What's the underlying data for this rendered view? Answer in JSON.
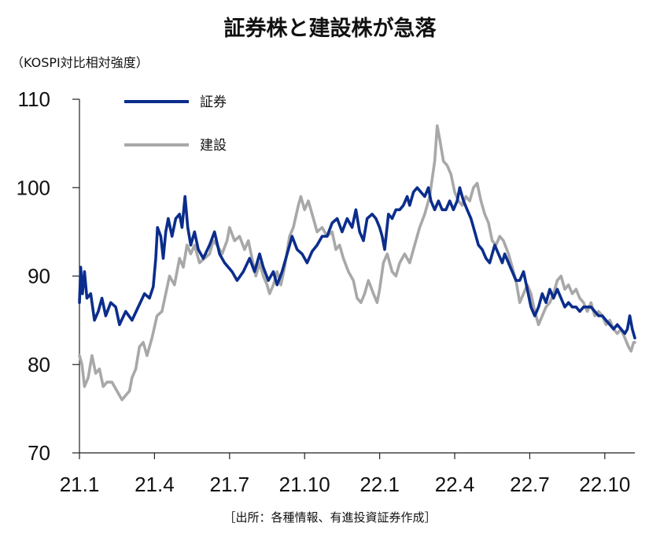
{
  "chart_data": {
    "type": "line",
    "title": "証券株と建設株が急落",
    "subtitle": "（KOSPI対比相対強度）",
    "source": "［出所：各種情報、有進投資証券作成］",
    "ylim": [
      70,
      110
    ],
    "yticks": [
      70,
      80,
      90,
      100,
      110
    ],
    "x_tick_labels": [
      "21.1",
      "21.4",
      "21.7",
      "21.10",
      "22.1",
      "22.4",
      "22.7",
      "22.10"
    ],
    "x_tick_index": [
      0,
      3,
      6,
      9,
      12,
      15,
      18,
      21
    ],
    "x_max_index": 22.2,
    "grid": false,
    "legend_position": "top-left",
    "series": [
      {
        "name": "証券",
        "color": "#0b2d8c",
        "points": [
          [
            0.0,
            87
          ],
          [
            0.05,
            91
          ],
          [
            0.12,
            88
          ],
          [
            0.2,
            90.5
          ],
          [
            0.3,
            87.5
          ],
          [
            0.45,
            88
          ],
          [
            0.6,
            85
          ],
          [
            0.75,
            86
          ],
          [
            0.9,
            87.5
          ],
          [
            1.05,
            85.5
          ],
          [
            1.25,
            87
          ],
          [
            1.45,
            86.5
          ],
          [
            1.6,
            84.5
          ],
          [
            1.85,
            86
          ],
          [
            2.1,
            85
          ],
          [
            2.35,
            86.5
          ],
          [
            2.6,
            88
          ],
          [
            2.8,
            87.5
          ],
          [
            2.95,
            88.8
          ],
          [
            3.05,
            92
          ],
          [
            3.12,
            95.5
          ],
          [
            3.25,
            94.5
          ],
          [
            3.35,
            92
          ],
          [
            3.45,
            95
          ],
          [
            3.55,
            96.5
          ],
          [
            3.7,
            94.5
          ],
          [
            3.85,
            96.5
          ],
          [
            4.0,
            97
          ],
          [
            4.1,
            95.5
          ],
          [
            4.22,
            99
          ],
          [
            4.33,
            95.5
          ],
          [
            4.45,
            93.5
          ],
          [
            4.6,
            95
          ],
          [
            4.75,
            93
          ],
          [
            4.95,
            92
          ],
          [
            5.2,
            93.5
          ],
          [
            5.4,
            95
          ],
          [
            5.6,
            92.5
          ],
          [
            5.8,
            91.5
          ],
          [
            6.1,
            90.5
          ],
          [
            6.3,
            89.5
          ],
          [
            6.55,
            90.5
          ],
          [
            6.8,
            92
          ],
          [
            7.0,
            90.5
          ],
          [
            7.2,
            92.5
          ],
          [
            7.35,
            91
          ],
          [
            7.55,
            89.5
          ],
          [
            7.75,
            90.5
          ],
          [
            7.9,
            89
          ],
          [
            8.1,
            90.5
          ],
          [
            8.3,
            92.5
          ],
          [
            8.5,
            94.5
          ],
          [
            8.7,
            93
          ],
          [
            8.9,
            92.5
          ],
          [
            9.1,
            91.5
          ],
          [
            9.3,
            92.8
          ],
          [
            9.5,
            93.5
          ],
          [
            9.7,
            94.5
          ],
          [
            9.9,
            94.5
          ],
          [
            10.1,
            96
          ],
          [
            10.3,
            96.5
          ],
          [
            10.5,
            95
          ],
          [
            10.7,
            96.5
          ],
          [
            10.9,
            95.5
          ],
          [
            11.05,
            97.5
          ],
          [
            11.2,
            95
          ],
          [
            11.35,
            94
          ],
          [
            11.5,
            96.5
          ],
          [
            11.7,
            97
          ],
          [
            11.85,
            96.5
          ],
          [
            12.0,
            95.5
          ],
          [
            12.1,
            94.5
          ],
          [
            12.2,
            93
          ],
          [
            12.35,
            97
          ],
          [
            12.5,
            96.5
          ],
          [
            12.65,
            97.5
          ],
          [
            12.8,
            97.5
          ],
          [
            12.95,
            98
          ],
          [
            13.1,
            99
          ],
          [
            13.2,
            98
          ],
          [
            13.35,
            99.5
          ],
          [
            13.5,
            100
          ],
          [
            13.65,
            99.5
          ],
          [
            13.8,
            99
          ],
          [
            13.95,
            100
          ],
          [
            14.05,
            98.5
          ],
          [
            14.2,
            97.5
          ],
          [
            14.35,
            98.5
          ],
          [
            14.5,
            97.5
          ],
          [
            14.65,
            97.5
          ],
          [
            14.8,
            98.5
          ],
          [
            14.95,
            97.5
          ],
          [
            15.1,
            98.5
          ],
          [
            15.2,
            100
          ],
          [
            15.35,
            98.5
          ],
          [
            15.5,
            97.5
          ],
          [
            15.65,
            96.5
          ],
          [
            15.8,
            95
          ],
          [
            15.95,
            93.5
          ],
          [
            16.1,
            93
          ],
          [
            16.25,
            92
          ],
          [
            16.4,
            91.5
          ],
          [
            16.6,
            93.5
          ],
          [
            16.75,
            92.5
          ],
          [
            16.9,
            91.5
          ],
          [
            17.0,
            92.5
          ],
          [
            17.15,
            91.5
          ],
          [
            17.3,
            90.5
          ],
          [
            17.45,
            89.5
          ],
          [
            17.6,
            89.5
          ],
          [
            17.75,
            90.5
          ],
          [
            17.9,
            88.5
          ],
          [
            18.05,
            86.5
          ],
          [
            18.2,
            85.5
          ],
          [
            18.35,
            86.5
          ],
          [
            18.5,
            88
          ],
          [
            18.65,
            87
          ],
          [
            18.8,
            88.5
          ],
          [
            18.95,
            87.5
          ],
          [
            19.1,
            88.5
          ],
          [
            19.25,
            87.5
          ],
          [
            19.4,
            86.5
          ],
          [
            19.55,
            87
          ],
          [
            19.7,
            86.5
          ],
          [
            19.85,
            86.5
          ],
          [
            20.0,
            86
          ],
          [
            20.15,
            86.5
          ],
          [
            20.3,
            86.5
          ],
          [
            20.45,
            86.5
          ],
          [
            20.6,
            86
          ],
          [
            20.75,
            85.5
          ],
          [
            20.9,
            85.5
          ],
          [
            21.05,
            85
          ],
          [
            21.2,
            84.5
          ],
          [
            21.35,
            84
          ],
          [
            21.5,
            84.5
          ],
          [
            21.65,
            84
          ],
          [
            21.8,
            83.5
          ],
          [
            21.9,
            84
          ],
          [
            22.0,
            85.5
          ],
          [
            22.1,
            84
          ],
          [
            22.2,
            83
          ]
        ]
      },
      {
        "name": "建設",
        "color": "#a8a8a8",
        "points": [
          [
            0.0,
            81
          ],
          [
            0.1,
            80
          ],
          [
            0.2,
            77.5
          ],
          [
            0.35,
            78.5
          ],
          [
            0.5,
            81
          ],
          [
            0.65,
            79
          ],
          [
            0.8,
            79.5
          ],
          [
            0.95,
            77.5
          ],
          [
            1.1,
            78
          ],
          [
            1.3,
            78
          ],
          [
            1.5,
            77
          ],
          [
            1.7,
            76
          ],
          [
            1.85,
            76.5
          ],
          [
            2.0,
            77
          ],
          [
            2.1,
            78.5
          ],
          [
            2.25,
            79.5
          ],
          [
            2.4,
            82
          ],
          [
            2.55,
            82.5
          ],
          [
            2.7,
            81
          ],
          [
            2.9,
            83
          ],
          [
            3.1,
            85.5
          ],
          [
            3.3,
            86
          ],
          [
            3.45,
            88
          ],
          [
            3.6,
            90
          ],
          [
            3.8,
            89
          ],
          [
            4.0,
            92
          ],
          [
            4.15,
            91
          ],
          [
            4.3,
            93.5
          ],
          [
            4.45,
            92.5
          ],
          [
            4.6,
            93.5
          ],
          [
            4.8,
            91.5
          ],
          [
            5.0,
            92
          ],
          [
            5.2,
            92.5
          ],
          [
            5.35,
            94
          ],
          [
            5.5,
            93.5
          ],
          [
            5.7,
            92.5
          ],
          [
            5.9,
            94
          ],
          [
            6.0,
            95.5
          ],
          [
            6.2,
            94
          ],
          [
            6.4,
            94.5
          ],
          [
            6.6,
            93
          ],
          [
            6.75,
            94
          ],
          [
            6.9,
            92
          ],
          [
            7.05,
            90
          ],
          [
            7.2,
            91.5
          ],
          [
            7.35,
            90
          ],
          [
            7.5,
            89
          ],
          [
            7.6,
            88
          ],
          [
            7.75,
            89
          ],
          [
            7.9,
            90.5
          ],
          [
            8.05,
            89
          ],
          [
            8.2,
            91
          ],
          [
            8.4,
            94.5
          ],
          [
            8.55,
            95.5
          ],
          [
            8.75,
            98
          ],
          [
            8.85,
            99
          ],
          [
            9.0,
            97.5
          ],
          [
            9.15,
            98.5
          ],
          [
            9.3,
            97
          ],
          [
            9.5,
            95
          ],
          [
            9.7,
            95.5
          ],
          [
            9.9,
            94.5
          ],
          [
            10.1,
            95
          ],
          [
            10.25,
            93
          ],
          [
            10.4,
            93.5
          ],
          [
            10.55,
            92
          ],
          [
            10.75,
            90.5
          ],
          [
            10.95,
            89.5
          ],
          [
            11.1,
            87.5
          ],
          [
            11.25,
            87
          ],
          [
            11.4,
            88
          ],
          [
            11.55,
            89.5
          ],
          [
            11.75,
            88
          ],
          [
            11.9,
            87
          ],
          [
            12.0,
            88.5
          ],
          [
            12.15,
            91.5
          ],
          [
            12.3,
            92.5
          ],
          [
            12.5,
            90.5
          ],
          [
            12.65,
            90
          ],
          [
            12.8,
            91.5
          ],
          [
            13.0,
            92.5
          ],
          [
            13.2,
            91.5
          ],
          [
            13.4,
            93.5
          ],
          [
            13.6,
            95.5
          ],
          [
            13.8,
            97
          ],
          [
            14.0,
            99
          ],
          [
            14.1,
            101
          ],
          [
            14.2,
            103
          ],
          [
            14.3,
            107
          ],
          [
            14.4,
            105.5
          ],
          [
            14.55,
            103
          ],
          [
            14.7,
            102.5
          ],
          [
            14.85,
            101.5
          ],
          [
            15.0,
            99.5
          ],
          [
            15.15,
            98.5
          ],
          [
            15.3,
            98
          ],
          [
            15.45,
            99
          ],
          [
            15.6,
            98.5
          ],
          [
            15.75,
            100
          ],
          [
            15.9,
            100.5
          ],
          [
            16.05,
            98.5
          ],
          [
            16.2,
            97
          ],
          [
            16.35,
            96
          ],
          [
            16.5,
            94
          ],
          [
            16.65,
            93.5
          ],
          [
            16.8,
            94.5
          ],
          [
            16.95,
            94
          ],
          [
            17.15,
            92.5
          ],
          [
            17.3,
            91
          ],
          [
            17.45,
            89.5
          ],
          [
            17.6,
            87
          ],
          [
            17.75,
            88
          ],
          [
            17.9,
            89
          ],
          [
            18.05,
            88
          ],
          [
            18.2,
            86
          ],
          [
            18.35,
            84.5
          ],
          [
            18.5,
            85.5
          ],
          [
            18.65,
            86.5
          ],
          [
            18.8,
            87
          ],
          [
            18.95,
            88
          ],
          [
            19.1,
            89.5
          ],
          [
            19.25,
            90
          ],
          [
            19.4,
            88.5
          ],
          [
            19.55,
            89
          ],
          [
            19.7,
            88
          ],
          [
            19.85,
            88.5
          ],
          [
            20.0,
            87.5
          ],
          [
            20.15,
            87
          ],
          [
            20.3,
            86
          ],
          [
            20.45,
            87
          ],
          [
            20.6,
            85.5
          ],
          [
            20.75,
            86
          ],
          [
            20.9,
            85.5
          ],
          [
            21.05,
            84.5
          ],
          [
            21.2,
            85
          ],
          [
            21.35,
            84
          ],
          [
            21.5,
            83.5
          ],
          [
            21.65,
            84
          ],
          [
            21.8,
            83
          ],
          [
            21.95,
            82
          ],
          [
            22.05,
            81.5
          ],
          [
            22.15,
            82.5
          ],
          [
            22.2,
            82.5
          ]
        ]
      }
    ]
  }
}
